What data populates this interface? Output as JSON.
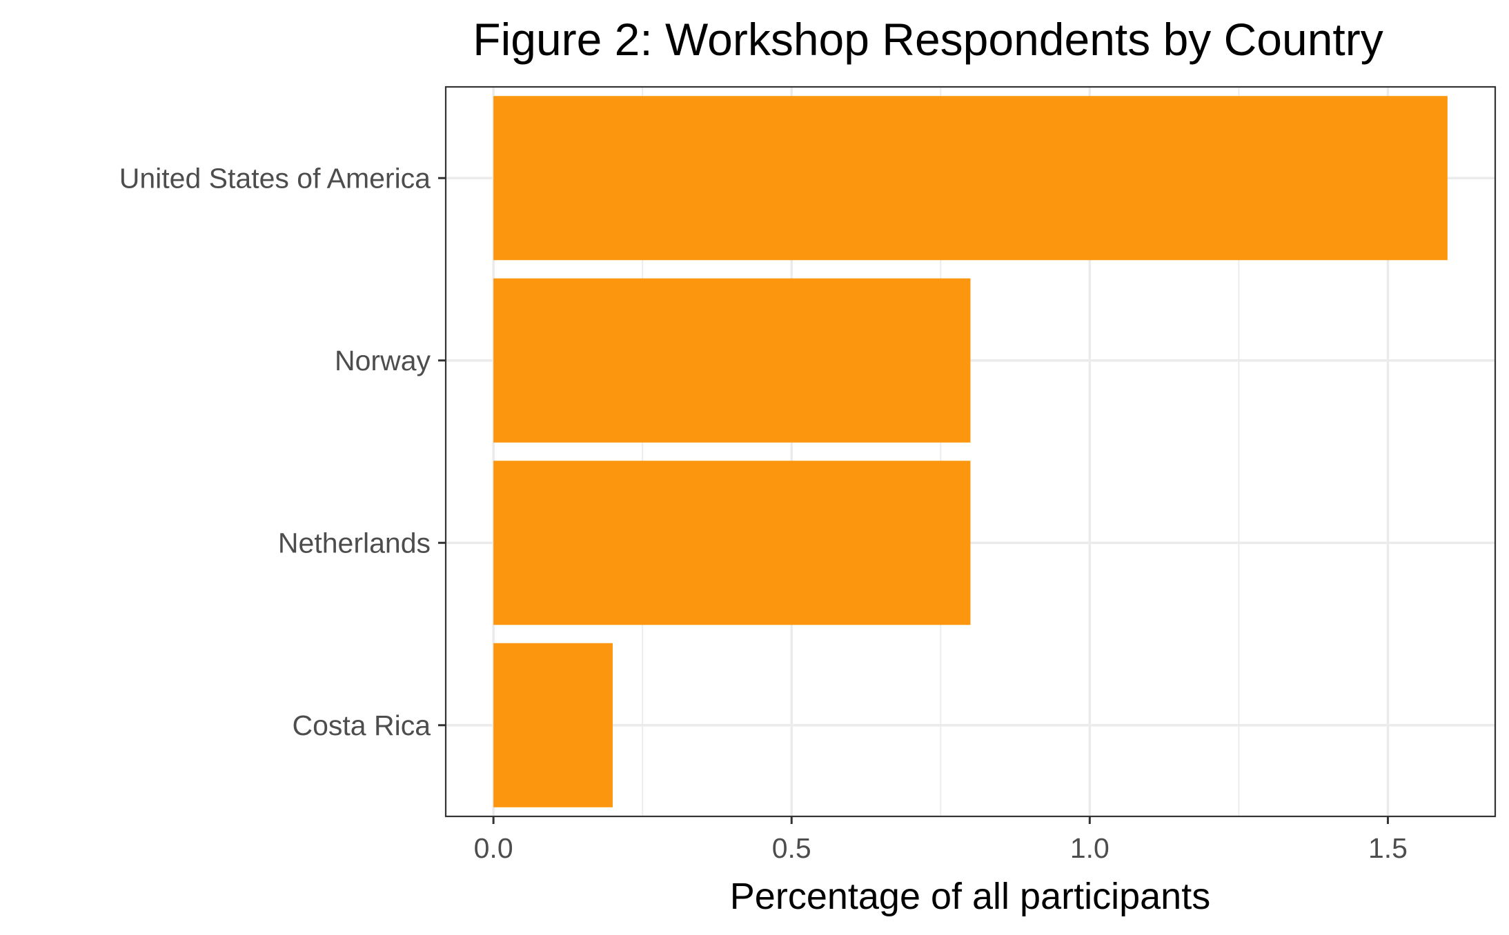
{
  "chart_data": {
    "type": "bar",
    "orientation": "horizontal",
    "title": "Figure 2: Workshop Respondents by Country",
    "xlabel": "Percentage of all participants",
    "ylabel": "",
    "categories": [
      "United States of America",
      "Norway",
      "Netherlands",
      "Costa Rica"
    ],
    "values": [
      1.6,
      0.8,
      0.8,
      0.2
    ],
    "xlim": [
      -0.08,
      1.68
    ],
    "x_ticks": [
      "0.0",
      "0.5",
      "1.0",
      "1.5"
    ],
    "grid": true,
    "legend": "none",
    "bar_color": "#fd960f"
  }
}
